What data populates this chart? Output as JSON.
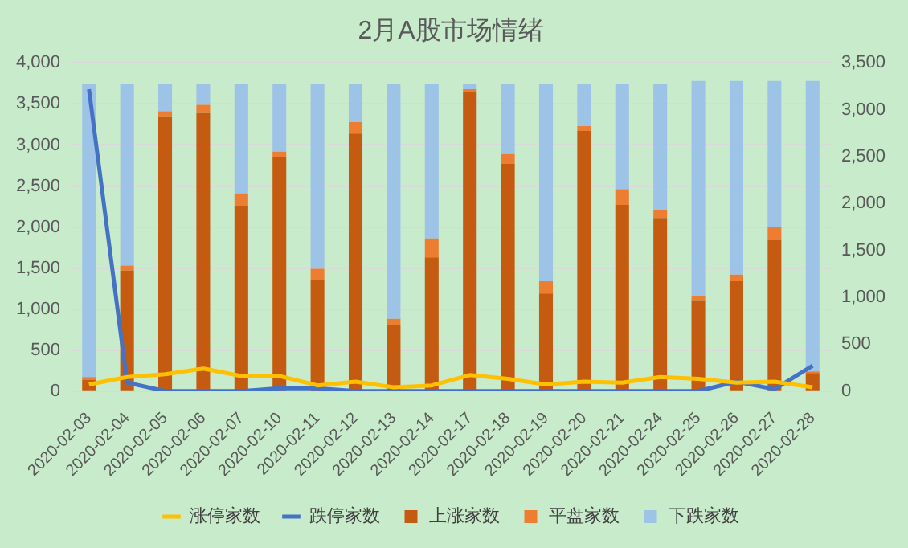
{
  "chart_data": {
    "type": "bar",
    "title": "2月A股市场情绪",
    "stacked": true,
    "categories": [
      "2020-02-03",
      "2020-02-04",
      "2020-02-05",
      "2020-02-06",
      "2020-02-07",
      "2020-02-10",
      "2020-02-11",
      "2020-02-12",
      "2020-02-13",
      "2020-02-14",
      "2020-02-17",
      "2020-02-18",
      "2020-02-19",
      "2020-02-20",
      "2020-02-21",
      "2020-02-24",
      "2020-02-25",
      "2020-02-26",
      "2020-02-27",
      "2020-02-28"
    ],
    "series": [
      {
        "name": "上涨家数",
        "color": "#c55a11",
        "values": [
          140,
          1470,
          3350,
          3390,
          2260,
          2850,
          1350,
          3140,
          800,
          1630,
          3650,
          2770,
          1190,
          3170,
          2270,
          2110,
          1110,
          1340,
          1840,
          220
        ]
      },
      {
        "name": "平盘家数",
        "color": "#ed7d31",
        "values": [
          30,
          60,
          60,
          100,
          150,
          70,
          140,
          140,
          80,
          230,
          30,
          120,
          150,
          60,
          190,
          100,
          50,
          80,
          160,
          20
        ]
      },
      {
        "name": "下跌家数",
        "color": "#9dc3e6",
        "values": [
          3580,
          2220,
          340,
          260,
          1340,
          830,
          2260,
          470,
          2870,
          1890,
          70,
          860,
          2410,
          520,
          1290,
          1540,
          2620,
          2360,
          1780,
          3540
        ]
      },
      {
        "name": "涨停家数",
        "type": "line",
        "axis": "y2",
        "color": "#ffc000",
        "values": [
          70,
          150,
          180,
          240,
          160,
          160,
          60,
          100,
          40,
          60,
          170,
          130,
          70,
          100,
          90,
          150,
          130,
          90,
          100,
          40
        ]
      },
      {
        "name": "跌停家数",
        "type": "line",
        "axis": "y2",
        "color": "#4472c4",
        "values": [
          3220,
          90,
          0,
          0,
          0,
          30,
          30,
          0,
          0,
          0,
          0,
          0,
          0,
          0,
          0,
          0,
          0,
          100,
          20,
          270
        ]
      }
    ],
    "ylim": [
      0,
      4000
    ],
    "yticks": [
      {
        "value": 0,
        "label": "0"
      },
      {
        "value": 500,
        "label": "500"
      },
      {
        "value": 1000,
        "label": "1,000"
      },
      {
        "value": 1500,
        "label": "1,500"
      },
      {
        "value": 2000,
        "label": "2,000"
      },
      {
        "value": 2500,
        "label": "2,500"
      },
      {
        "value": 3000,
        "label": "3,000"
      },
      {
        "value": 3500,
        "label": "3,500"
      },
      {
        "value": 4000,
        "label": "4,000"
      }
    ],
    "y2lim": [
      0,
      3500
    ],
    "y2ticks": [
      {
        "value": 0,
        "label": "0"
      },
      {
        "value": 500,
        "label": "500"
      },
      {
        "value": 1000,
        "label": "1,000"
      },
      {
        "value": 1500,
        "label": "1,500"
      },
      {
        "value": 2000,
        "label": "2,000"
      },
      {
        "value": 2500,
        "label": "2,500"
      },
      {
        "value": 3000,
        "label": "3,000"
      },
      {
        "value": 3500,
        "label": "3,500"
      }
    ],
    "grid": "y",
    "legend": "bottom",
    "marker": "none"
  }
}
